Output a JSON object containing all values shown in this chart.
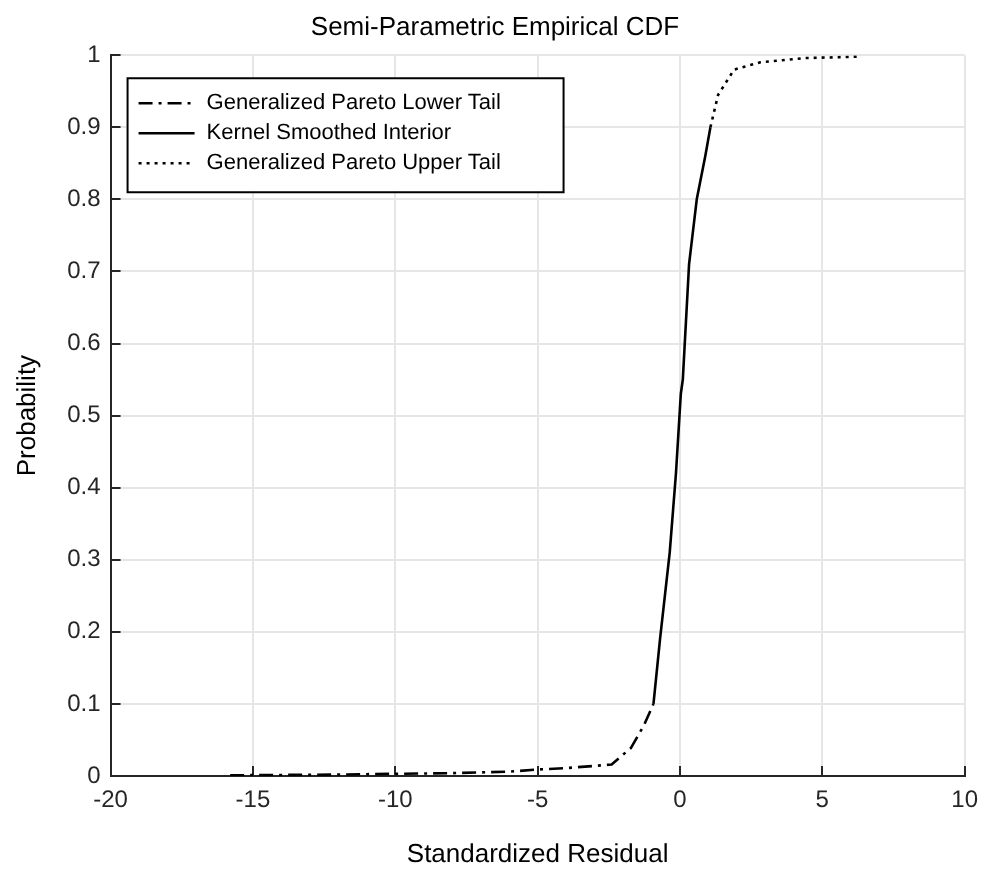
{
  "chart_data": {
    "type": "line",
    "title": "Semi-Parametric Empirical CDF",
    "xlabel": "Standardized Residual",
    "ylabel": "Probability",
    "xlim": [
      -20,
      10
    ],
    "xticks": [
      -20,
      -15,
      -10,
      -5,
      0,
      5,
      10
    ],
    "ylim": [
      0,
      1
    ],
    "yticks": [
      0,
      0.1,
      0.2,
      0.3,
      0.4,
      0.5,
      0.6,
      0.7,
      0.8,
      0.9,
      1
    ],
    "grid": true,
    "legend": "top left",
    "marker": "none",
    "series": [
      {
        "name": "Generalized Pareto Lower Tail",
        "color": "#000000",
        "line_style": "dashdot",
        "x": [
          -15.8,
          -12,
          -10,
          -8,
          -6,
          -5,
          -4,
          -3,
          -2.4,
          -1.72,
          -1.27,
          -0.93
        ],
        "values": [
          0.001,
          0.002,
          0.003,
          0.004,
          0.006,
          0.009,
          0.011,
          0.014,
          0.016,
          0.039,
          0.07,
          0.1
        ]
      },
      {
        "name": "Kernel Smoothed Interior",
        "color": "#000000",
        "line_style": "solid",
        "x": [
          -0.93,
          -0.7,
          -0.36,
          -0.14,
          0.03,
          0.1,
          0.32,
          0.59,
          0.89,
          1.07
        ],
        "values": [
          0.1,
          0.19,
          0.31,
          0.42,
          0.53,
          0.55,
          0.71,
          0.8,
          0.86,
          0.9
        ]
      },
      {
        "name": "Generalized Pareto Upper Tail",
        "color": "#000000",
        "line_style": "dotted",
        "x": [
          1.07,
          1.34,
          1.9,
          2.8,
          4.4,
          6.3
        ],
        "values": [
          0.9,
          0.945,
          0.98,
          0.99,
          0.996,
          0.998
        ]
      }
    ]
  }
}
